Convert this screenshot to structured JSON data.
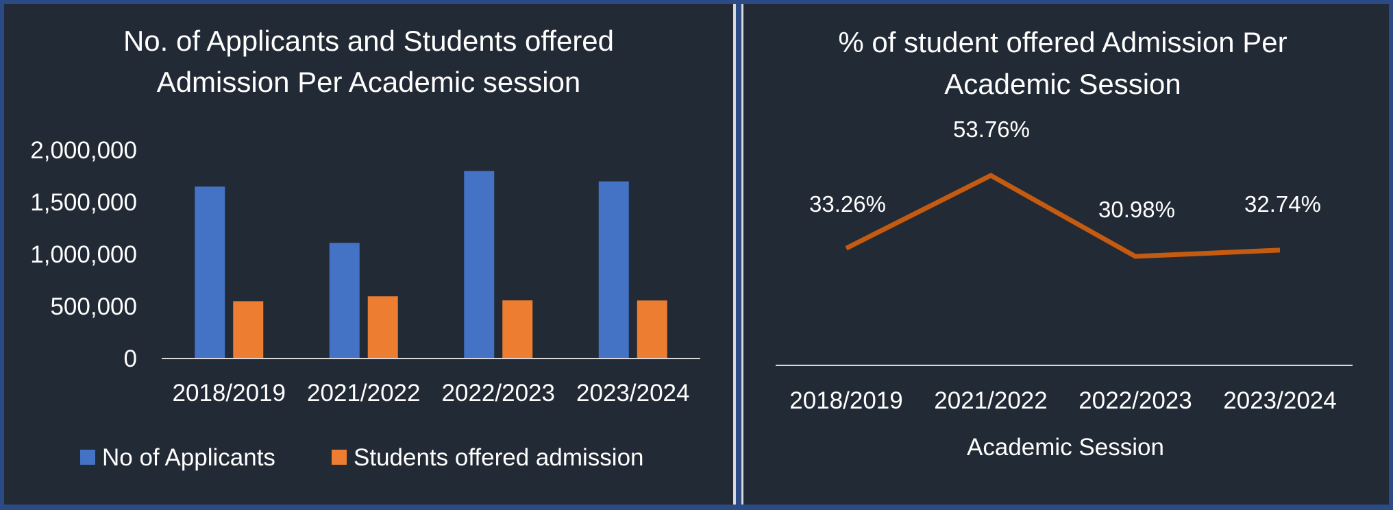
{
  "colors": {
    "applicants": "#4472c4",
    "offered": "#ed7d31",
    "line": "#c55a11",
    "panel_bg": "#222a35",
    "page_bg": "#2c4a84"
  },
  "chart_data": [
    {
      "type": "bar",
      "title": "No. of Applicants and Students offered Admission Per Academic session",
      "title_lines": [
        "No. of Applicants and Students offered",
        "Admission Per Academic session"
      ],
      "categories": [
        "2018/2019",
        "2021/2022",
        "2022/2023",
        "2023/2024"
      ],
      "ylim": [
        0,
        2000000
      ],
      "yticks": [
        0,
        500000,
        1000000,
        1500000,
        2000000
      ],
      "ytick_labels": [
        "0",
        "500,000",
        "1,000,000",
        "1,500,000",
        "2,000,000"
      ],
      "grid": false,
      "legend_position": "bottom",
      "series": [
        {
          "name": "No of Applicants",
          "values": [
            1650000,
            1110000,
            1800000,
            1700000
          ]
        },
        {
          "name": "Students offered admission",
          "values": [
            550000,
            597000,
            558000,
            557000
          ]
        }
      ]
    },
    {
      "type": "line",
      "title": "% of student offered Admission Per Academic Session",
      "title_lines": [
        "% of student offered Admission Per",
        "Academic Session"
      ],
      "categories": [
        "2018/2019",
        "2021/2022",
        "2022/2023",
        "2023/2024"
      ],
      "xlabel": "Academic Session",
      "values": [
        33.26,
        53.76,
        30.98,
        32.74
      ],
      "data_labels": [
        "33.26%",
        "53.76%",
        "30.98%",
        "32.74%"
      ],
      "grid": false
    }
  ]
}
